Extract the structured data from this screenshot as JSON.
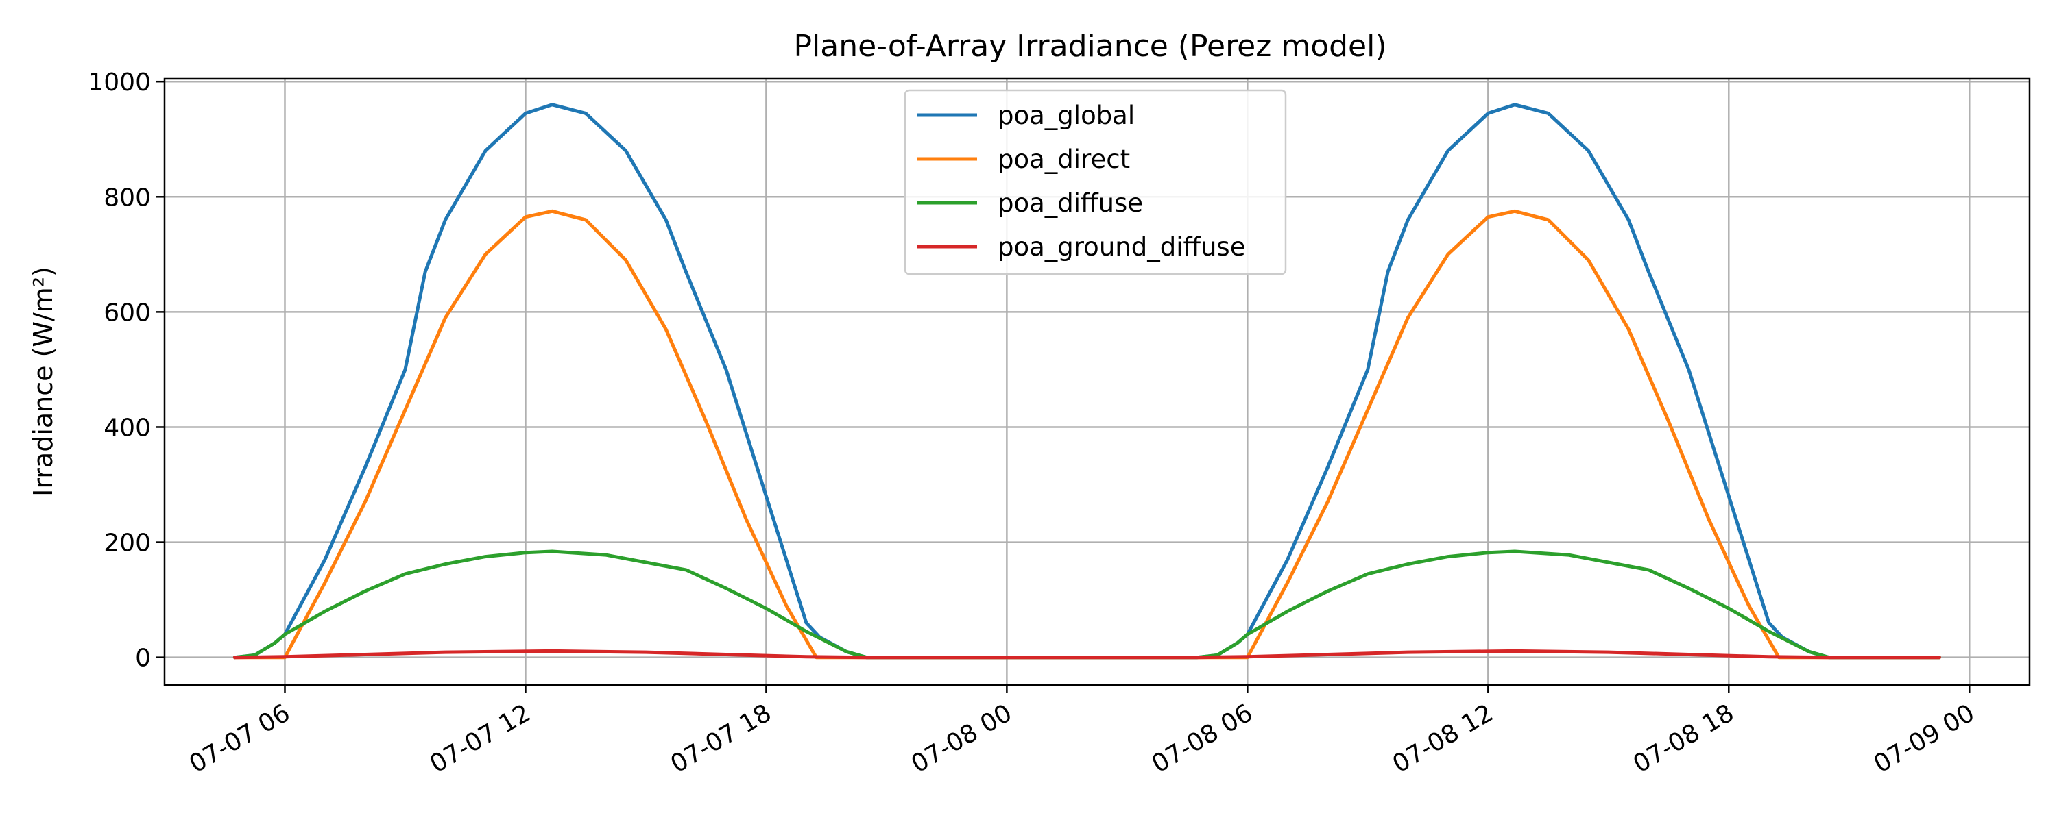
{
  "chart_data": {
    "type": "line",
    "title": "Plane-of-Array Irradiance (Perez model)",
    "xlabel": "",
    "ylabel": "Irradiance (W/m²)",
    "x_axis_type": "datetime",
    "xlim": [
      "2025-07-07T03:00",
      "2025-07-09T01:30"
    ],
    "ylim": [
      -48,
      1005
    ],
    "grid": true,
    "legend_position": "upper-center",
    "x_ticks": [
      {
        "value": "2025-07-07T06:00",
        "label": "07-07 06"
      },
      {
        "value": "2025-07-07T12:00",
        "label": "07-07 12"
      },
      {
        "value": "2025-07-07T18:00",
        "label": "07-07 18"
      },
      {
        "value": "2025-07-08T00:00",
        "label": "07-08 00"
      },
      {
        "value": "2025-07-08T06:00",
        "label": "07-08 06"
      },
      {
        "value": "2025-07-08T12:00",
        "label": "07-08 12"
      },
      {
        "value": "2025-07-08T18:00",
        "label": "07-08 18"
      },
      {
        "value": "2025-07-09T00:00",
        "label": "07-09 00"
      }
    ],
    "y_ticks": [
      0,
      200,
      400,
      600,
      800,
      1000
    ],
    "series": [
      {
        "name": "poa_global",
        "color": "#1f77b4",
        "points": [
          [
            "2025-07-07T04:45",
            0
          ],
          [
            "2025-07-07T05:15",
            4
          ],
          [
            "2025-07-07T05:45",
            25
          ],
          [
            "2025-07-07T06:00",
            40
          ],
          [
            "2025-07-07T07:00",
            170
          ],
          [
            "2025-07-07T08:00",
            330
          ],
          [
            "2025-07-07T09:00",
            500
          ],
          [
            "2025-07-07T09:30",
            670
          ],
          [
            "2025-07-07T10:00",
            760
          ],
          [
            "2025-07-07T11:00",
            880
          ],
          [
            "2025-07-07T12:00",
            945
          ],
          [
            "2025-07-07T12:40",
            960
          ],
          [
            "2025-07-07T13:30",
            945
          ],
          [
            "2025-07-07T14:30",
            880
          ],
          [
            "2025-07-07T15:30",
            760
          ],
          [
            "2025-07-07T16:00",
            670
          ],
          [
            "2025-07-07T17:00",
            500
          ],
          [
            "2025-07-07T18:00",
            280
          ],
          [
            "2025-07-07T19:00",
            60
          ],
          [
            "2025-07-07T19:20",
            35
          ],
          [
            "2025-07-07T20:00",
            10
          ],
          [
            "2025-07-07T20:30",
            0
          ],
          [
            "2025-07-08T04:45",
            0
          ],
          [
            "2025-07-08T05:15",
            4
          ],
          [
            "2025-07-08T05:45",
            25
          ],
          [
            "2025-07-08T06:00",
            40
          ],
          [
            "2025-07-08T07:00",
            170
          ],
          [
            "2025-07-08T08:00",
            330
          ],
          [
            "2025-07-08T09:00",
            500
          ],
          [
            "2025-07-08T09:30",
            670
          ],
          [
            "2025-07-08T10:00",
            760
          ],
          [
            "2025-07-08T11:00",
            880
          ],
          [
            "2025-07-08T12:00",
            945
          ],
          [
            "2025-07-08T12:40",
            960
          ],
          [
            "2025-07-08T13:30",
            945
          ],
          [
            "2025-07-08T14:30",
            880
          ],
          [
            "2025-07-08T15:30",
            760
          ],
          [
            "2025-07-08T16:00",
            670
          ],
          [
            "2025-07-08T17:00",
            500
          ],
          [
            "2025-07-08T18:00",
            280
          ],
          [
            "2025-07-08T19:00",
            60
          ],
          [
            "2025-07-08T19:20",
            35
          ],
          [
            "2025-07-08T20:00",
            10
          ],
          [
            "2025-07-08T20:30",
            0
          ],
          [
            "2025-07-08T23:15",
            0
          ]
        ]
      },
      {
        "name": "poa_direct",
        "color": "#ff7f0e",
        "points": [
          [
            "2025-07-07T04:45",
            0
          ],
          [
            "2025-07-07T06:00",
            0
          ],
          [
            "2025-07-07T07:00",
            130
          ],
          [
            "2025-07-07T08:00",
            270
          ],
          [
            "2025-07-07T09:00",
            430
          ],
          [
            "2025-07-07T10:00",
            590
          ],
          [
            "2025-07-07T11:00",
            700
          ],
          [
            "2025-07-07T12:00",
            765
          ],
          [
            "2025-07-07T12:40",
            775
          ],
          [
            "2025-07-07T13:30",
            760
          ],
          [
            "2025-07-07T14:30",
            690
          ],
          [
            "2025-07-07T15:30",
            570
          ],
          [
            "2025-07-07T16:30",
            410
          ],
          [
            "2025-07-07T17:30",
            240
          ],
          [
            "2025-07-07T18:30",
            90
          ],
          [
            "2025-07-07T19:15",
            0
          ],
          [
            "2025-07-08T06:00",
            0
          ],
          [
            "2025-07-08T07:00",
            130
          ],
          [
            "2025-07-08T08:00",
            270
          ],
          [
            "2025-07-08T09:00",
            430
          ],
          [
            "2025-07-08T10:00",
            590
          ],
          [
            "2025-07-08T11:00",
            700
          ],
          [
            "2025-07-08T12:00",
            765
          ],
          [
            "2025-07-08T12:40",
            775
          ],
          [
            "2025-07-08T13:30",
            760
          ],
          [
            "2025-07-08T14:30",
            690
          ],
          [
            "2025-07-08T15:30",
            570
          ],
          [
            "2025-07-08T16:30",
            410
          ],
          [
            "2025-07-08T17:30",
            240
          ],
          [
            "2025-07-08T18:30",
            90
          ],
          [
            "2025-07-08T19:15",
            0
          ],
          [
            "2025-07-08T23:15",
            0
          ]
        ]
      },
      {
        "name": "poa_diffuse",
        "color": "#2ca02c",
        "points": [
          [
            "2025-07-07T04:45",
            0
          ],
          [
            "2025-07-07T05:15",
            4
          ],
          [
            "2025-07-07T05:45",
            25
          ],
          [
            "2025-07-07T06:00",
            40
          ],
          [
            "2025-07-07T07:00",
            80
          ],
          [
            "2025-07-07T08:00",
            115
          ],
          [
            "2025-07-07T09:00",
            145
          ],
          [
            "2025-07-07T10:00",
            162
          ],
          [
            "2025-07-07T11:00",
            175
          ],
          [
            "2025-07-07T12:00",
            182
          ],
          [
            "2025-07-07T12:40",
            184
          ],
          [
            "2025-07-07T14:00",
            178
          ],
          [
            "2025-07-07T15:00",
            165
          ],
          [
            "2025-07-07T16:00",
            152
          ],
          [
            "2025-07-07T17:00",
            120
          ],
          [
            "2025-07-07T18:00",
            85
          ],
          [
            "2025-07-07T19:00",
            45
          ],
          [
            "2025-07-07T20:00",
            10
          ],
          [
            "2025-07-07T20:30",
            0
          ],
          [
            "2025-07-08T04:45",
            0
          ],
          [
            "2025-07-08T05:15",
            4
          ],
          [
            "2025-07-08T05:45",
            25
          ],
          [
            "2025-07-08T06:00",
            40
          ],
          [
            "2025-07-08T07:00",
            80
          ],
          [
            "2025-07-08T08:00",
            115
          ],
          [
            "2025-07-08T09:00",
            145
          ],
          [
            "2025-07-08T10:00",
            162
          ],
          [
            "2025-07-08T11:00",
            175
          ],
          [
            "2025-07-08T12:00",
            182
          ],
          [
            "2025-07-08T12:40",
            184
          ],
          [
            "2025-07-08T14:00",
            178
          ],
          [
            "2025-07-08T15:00",
            165
          ],
          [
            "2025-07-08T16:00",
            152
          ],
          [
            "2025-07-08T17:00",
            120
          ],
          [
            "2025-07-08T18:00",
            85
          ],
          [
            "2025-07-08T19:00",
            45
          ],
          [
            "2025-07-08T20:00",
            10
          ],
          [
            "2025-07-08T20:30",
            0
          ],
          [
            "2025-07-08T23:15",
            0
          ]
        ]
      },
      {
        "name": "poa_ground_diffuse",
        "color": "#d62728",
        "points": [
          [
            "2025-07-07T04:45",
            0
          ],
          [
            "2025-07-07T06:00",
            1
          ],
          [
            "2025-07-07T08:00",
            5
          ],
          [
            "2025-07-07T10:00",
            9
          ],
          [
            "2025-07-07T12:40",
            11
          ],
          [
            "2025-07-07T15:00",
            9
          ],
          [
            "2025-07-07T17:00",
            5
          ],
          [
            "2025-07-07T19:00",
            1
          ],
          [
            "2025-07-07T20:30",
            0
          ],
          [
            "2025-07-08T04:45",
            0
          ],
          [
            "2025-07-08T06:00",
            1
          ],
          [
            "2025-07-08T08:00",
            5
          ],
          [
            "2025-07-08T10:00",
            9
          ],
          [
            "2025-07-08T12:40",
            11
          ],
          [
            "2025-07-08T15:00",
            9
          ],
          [
            "2025-07-08T17:00",
            5
          ],
          [
            "2025-07-08T19:00",
            1
          ],
          [
            "2025-07-08T20:30",
            0
          ],
          [
            "2025-07-08T23:15",
            0
          ]
        ]
      }
    ]
  }
}
